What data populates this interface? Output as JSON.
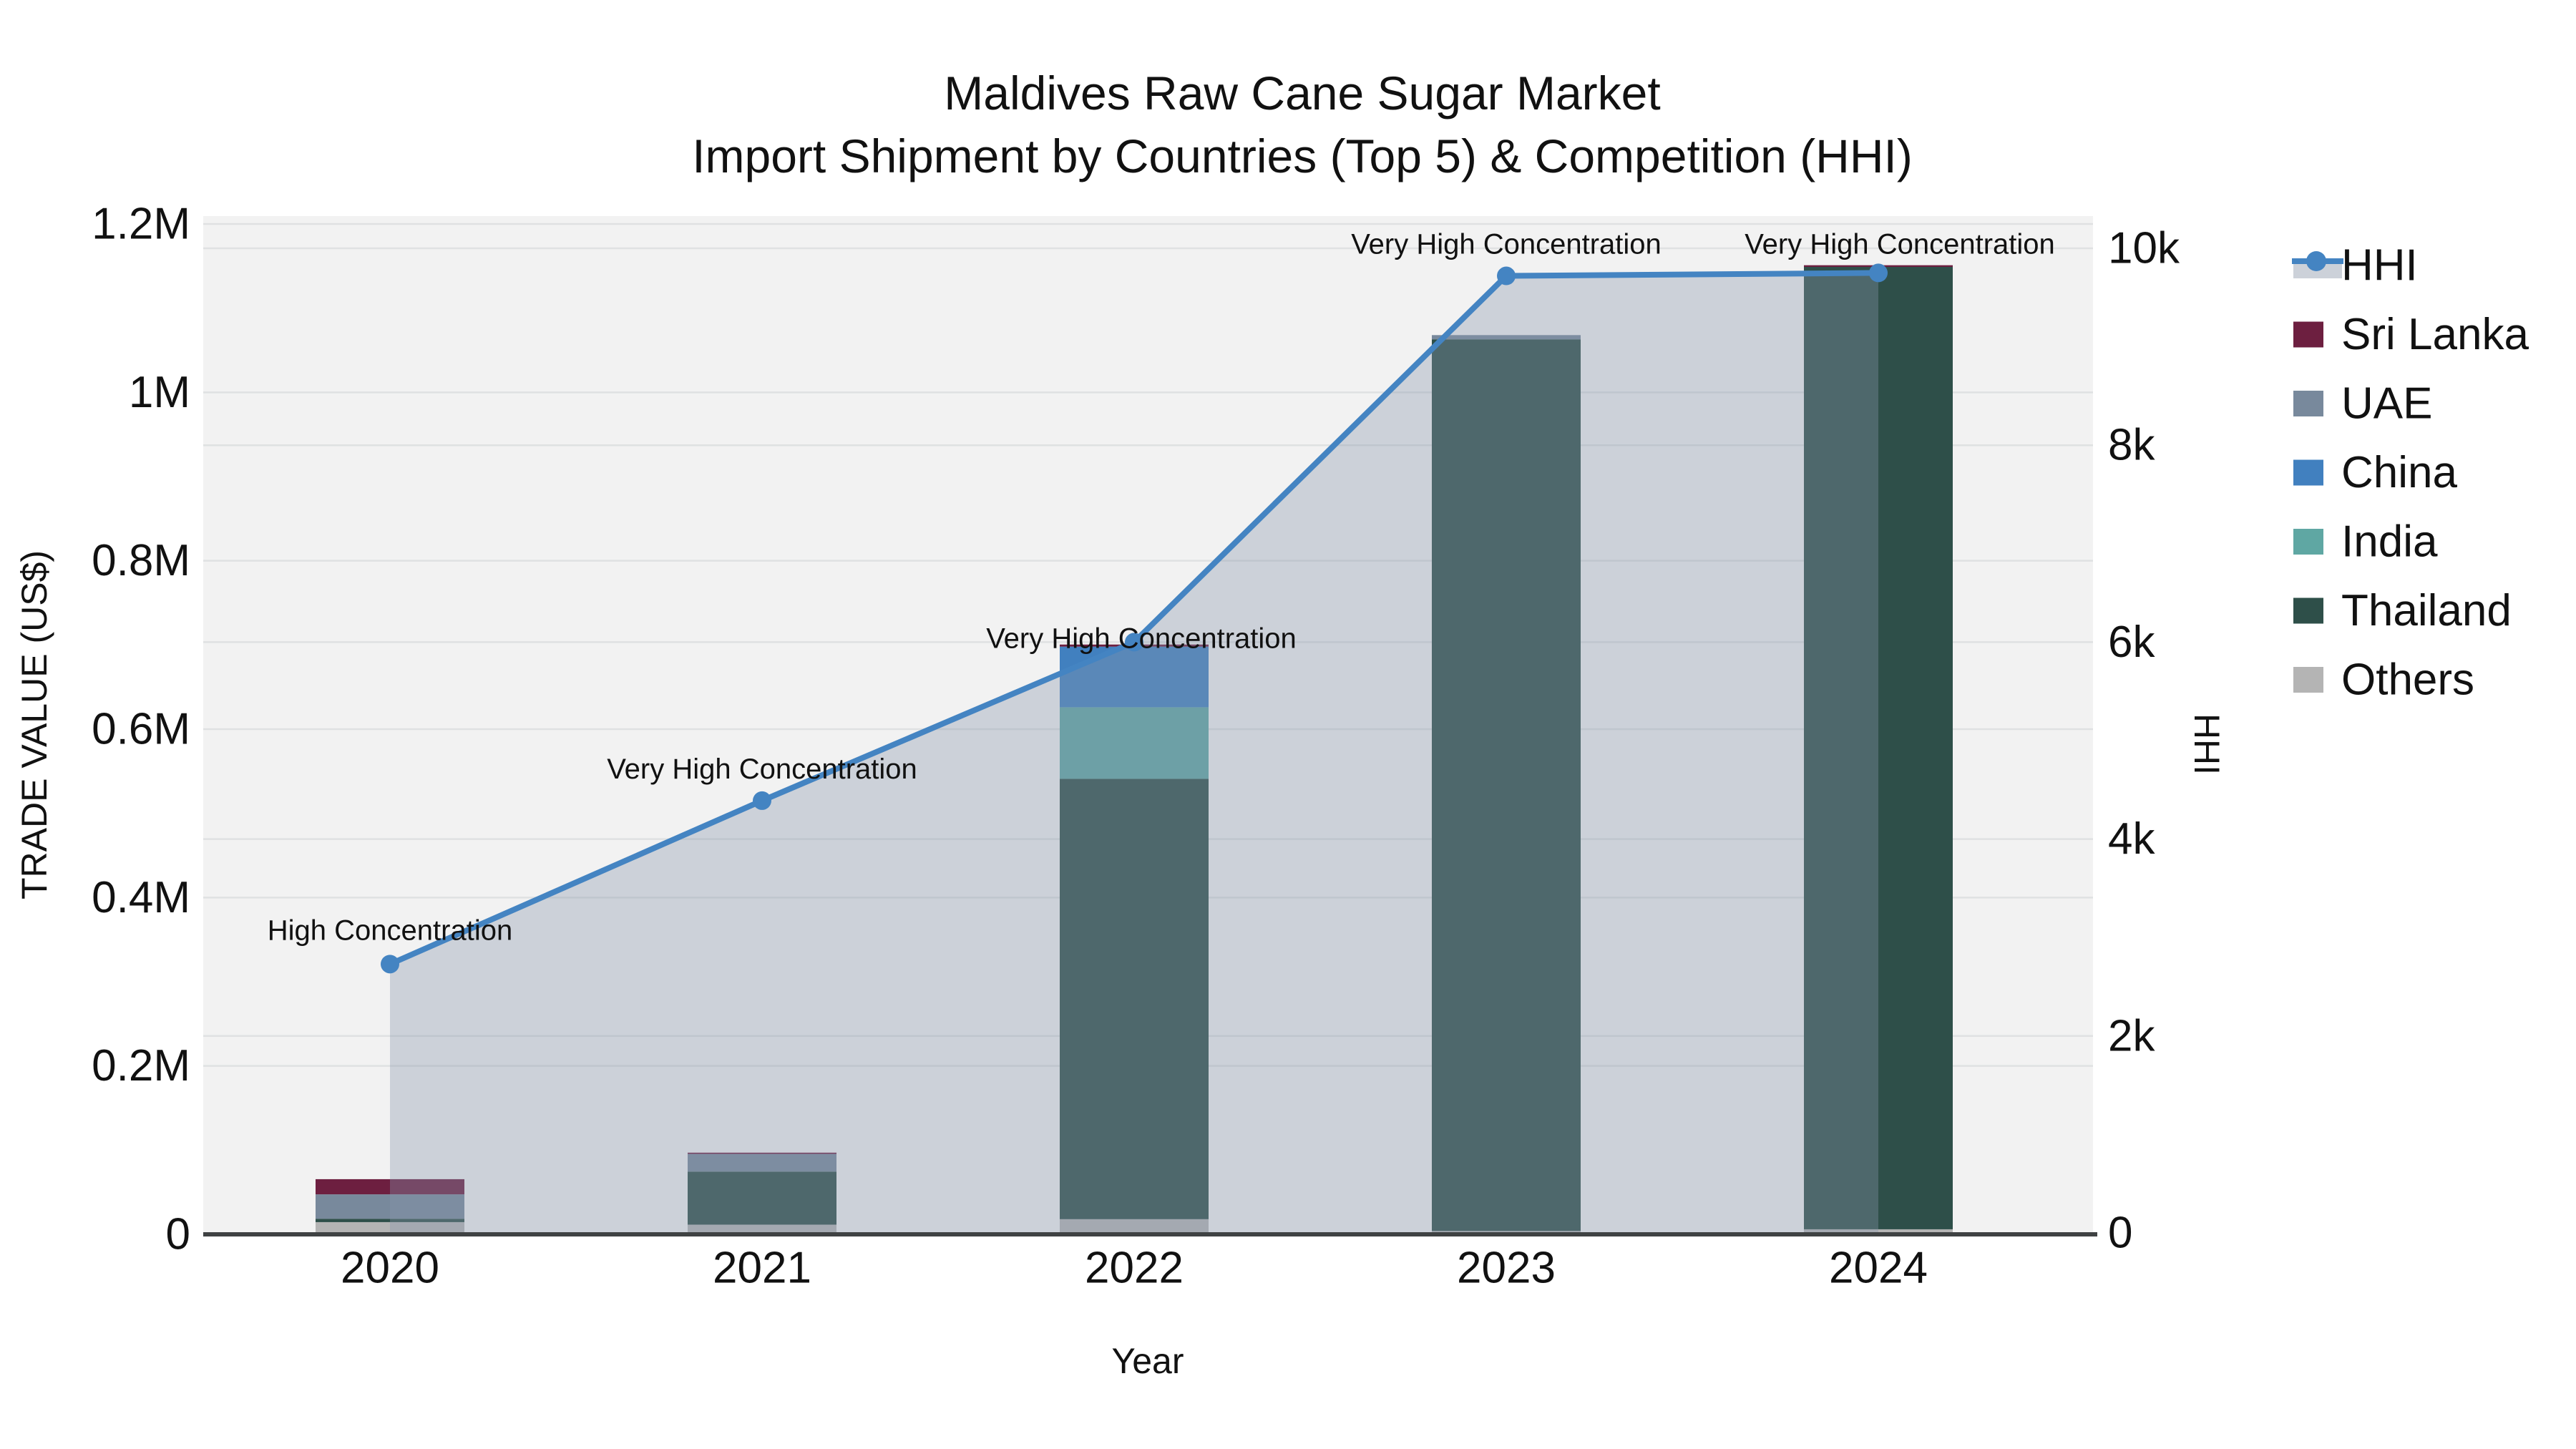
{
  "title": {
    "line1": "Maldives Raw Cane Sugar Market",
    "line2": "Import Shipment by Countries (Top 5) & Competition (HHI)"
  },
  "axes": {
    "x": {
      "title": "Year",
      "tick_labels": [
        "2020",
        "2021",
        "2022",
        "2023",
        "2024"
      ]
    },
    "y_left": {
      "title": "TRADE VALUE (US$)",
      "tick_labels": [
        "0",
        "0.2M",
        "0.4M",
        "0.6M",
        "0.8M",
        "1M",
        "1.2M"
      ],
      "tick_values": [
        0,
        200000,
        400000,
        600000,
        800000,
        1000000,
        1200000
      ],
      "range": [
        0,
        1200000
      ]
    },
    "y_right": {
      "title": "HHI",
      "tick_labels": [
        "0",
        "2k",
        "4k",
        "6k",
        "8k",
        "10k"
      ],
      "tick_values": [
        0,
        2000,
        4000,
        6000,
        8000,
        10000
      ],
      "range": [
        0,
        10000
      ]
    }
  },
  "legend": {
    "items": [
      {
        "label": "HHI",
        "swatch": "line",
        "color": "#4484c2"
      },
      {
        "label": "Sri Lanka",
        "swatch": "square",
        "color": "#6d1f40"
      },
      {
        "label": "UAE",
        "swatch": "square",
        "color": "#78899c"
      },
      {
        "label": "China",
        "swatch": "square",
        "color": "#4180bf"
      },
      {
        "label": "India",
        "swatch": "square",
        "color": "#5fa7a3"
      },
      {
        "label": "Thailand",
        "swatch": "square",
        "color": "#2e4f49"
      },
      {
        "label": "Others",
        "swatch": "square",
        "color": "#b4b4b4"
      }
    ]
  },
  "colors": {
    "hhi_line": "#4484c2",
    "hhi_area_fill": "rgba(135,150,172,0.36)",
    "plot_bg": "#f2f2f2",
    "grid": "#dfe1e2",
    "axis_line": "#3f4243",
    "text": "#111111"
  },
  "chart_data": {
    "type": "bar+line",
    "title": "Maldives Raw Cane Sugar Market — Import Shipment by Countries (Top 5) & Competition (HHI)",
    "categories": [
      2020,
      2021,
      2022,
      2023,
      2024
    ],
    "stack_order_bottom_to_top": [
      "Others",
      "Thailand",
      "India",
      "China",
      "UAE",
      "Sri Lanka"
    ],
    "series": [
      {
        "name": "Sri Lanka",
        "color": "#6d1f40",
        "values": [
          18000,
          1500,
          2500,
          0,
          2000
        ]
      },
      {
        "name": "UAE",
        "color": "#78899c",
        "values": [
          29000,
          21000,
          0,
          5000,
          0
        ]
      },
      {
        "name": "China",
        "color": "#4180bf",
        "values": [
          0,
          0,
          72000,
          0,
          0
        ]
      },
      {
        "name": "India",
        "color": "#5fa7a3",
        "values": [
          0,
          0,
          85000,
          0,
          0
        ]
      },
      {
        "name": "Thailand",
        "color": "#2e4f49",
        "values": [
          4000,
          63000,
          523000,
          1059000,
          1143000
        ]
      },
      {
        "name": "Others",
        "color": "#b4b4b4",
        "values": [
          14500,
          11500,
          18000,
          4000,
          6000
        ]
      }
    ],
    "line_series": {
      "name": "HHI",
      "axis": "right",
      "color": "#4484c2",
      "values": [
        2730,
        4390,
        6000,
        9720,
        9750
      ]
    },
    "annotations": [
      {
        "x": 2020,
        "text": "High Concentration"
      },
      {
        "x": 2021,
        "text": "Very High Concentration"
      },
      {
        "x": 2022,
        "text": "Very High Concentration"
      },
      {
        "x": 2023,
        "text": "Very High Concentration"
      },
      {
        "x": 2024,
        "text": "Very High Concentration"
      }
    ],
    "xlabel": "Year",
    "ylabel_left": "TRADE VALUE (US$)",
    "ylabel_right": "HHI",
    "ylim_left": [
      0,
      1200000
    ],
    "ylim_right": [
      0,
      10000
    ],
    "grid": true,
    "legend_position": "right"
  }
}
